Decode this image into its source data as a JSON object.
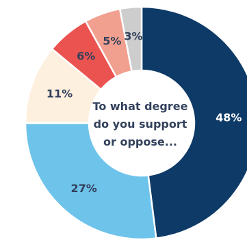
{
  "chart_data": {
    "type": "pie",
    "title": "",
    "center_text": [
      "To what degree",
      "do you support",
      "or oppose..."
    ],
    "slices": [
      {
        "value": 48,
        "label": "48%",
        "color": "#0d3a67",
        "label_color": "#ffffff"
      },
      {
        "value": 27,
        "label": "27%",
        "color": "#6ec3ea",
        "label_color": "#33415c"
      },
      {
        "value": 11,
        "label": "11%",
        "color": "#fdf0de",
        "label_color": "#33415c"
      },
      {
        "value": 6,
        "label": "6%",
        "color": "#ea5350",
        "label_color": "#33415c"
      },
      {
        "value": 5,
        "label": "5%",
        "color": "#f19f8f",
        "label_color": "#33415c"
      },
      {
        "value": 3,
        "label": "3%",
        "color": "#cdcdcd",
        "label_color": "#33415c"
      }
    ],
    "start_angle_deg": 0,
    "direction": "clockwise"
  }
}
